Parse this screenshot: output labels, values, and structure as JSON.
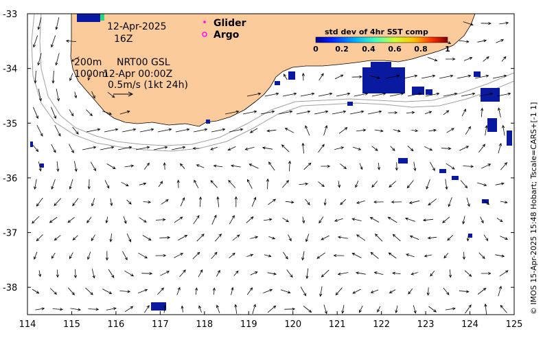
{
  "map": {
    "lon_range": [
      114,
      125
    ],
    "lat_range": [
      -38.5,
      -33
    ],
    "x_ticks": [
      114,
      115,
      116,
      117,
      118,
      119,
      120,
      121,
      122,
      123,
      124,
      125
    ],
    "y_ticks": [
      -33,
      -34,
      -35,
      -36,
      -37,
      -38
    ],
    "colors": {
      "land": "#fccb9b",
      "contour": "#a0a0a0",
      "arrow": "#000000",
      "sst_high": "#0a1aa0"
    }
  },
  "annotations": {
    "date": "12-Apr-2025",
    "time": "16Z",
    "depth_line1": "200m",
    "depth_line2": "1000m",
    "product": "NRT00 GSL",
    "product_time": "12-Apr 00:00Z",
    "scale_label": "0.5m/s (1kt 24h)"
  },
  "legend": {
    "glider_label": "Glider",
    "argo_label": "Argo",
    "glider_color": "#ff00ff",
    "argo_color": "#ff00ff"
  },
  "colorbar": {
    "title": "std dev of 4hr SST comp",
    "tick_labels": [
      "0",
      "0.2",
      "0.4",
      "0.6",
      "0.8",
      "1"
    ],
    "colors": [
      "#00008f",
      "#0020ff",
      "#00afff",
      "#3fffbf",
      "#cfff30",
      "#ffbf00",
      "#ff3000",
      "#800000"
    ]
  },
  "credit": "© IMOS 15-Apr-2025 15:48 Hobart; Tscale=CARS+[-1 1]"
}
